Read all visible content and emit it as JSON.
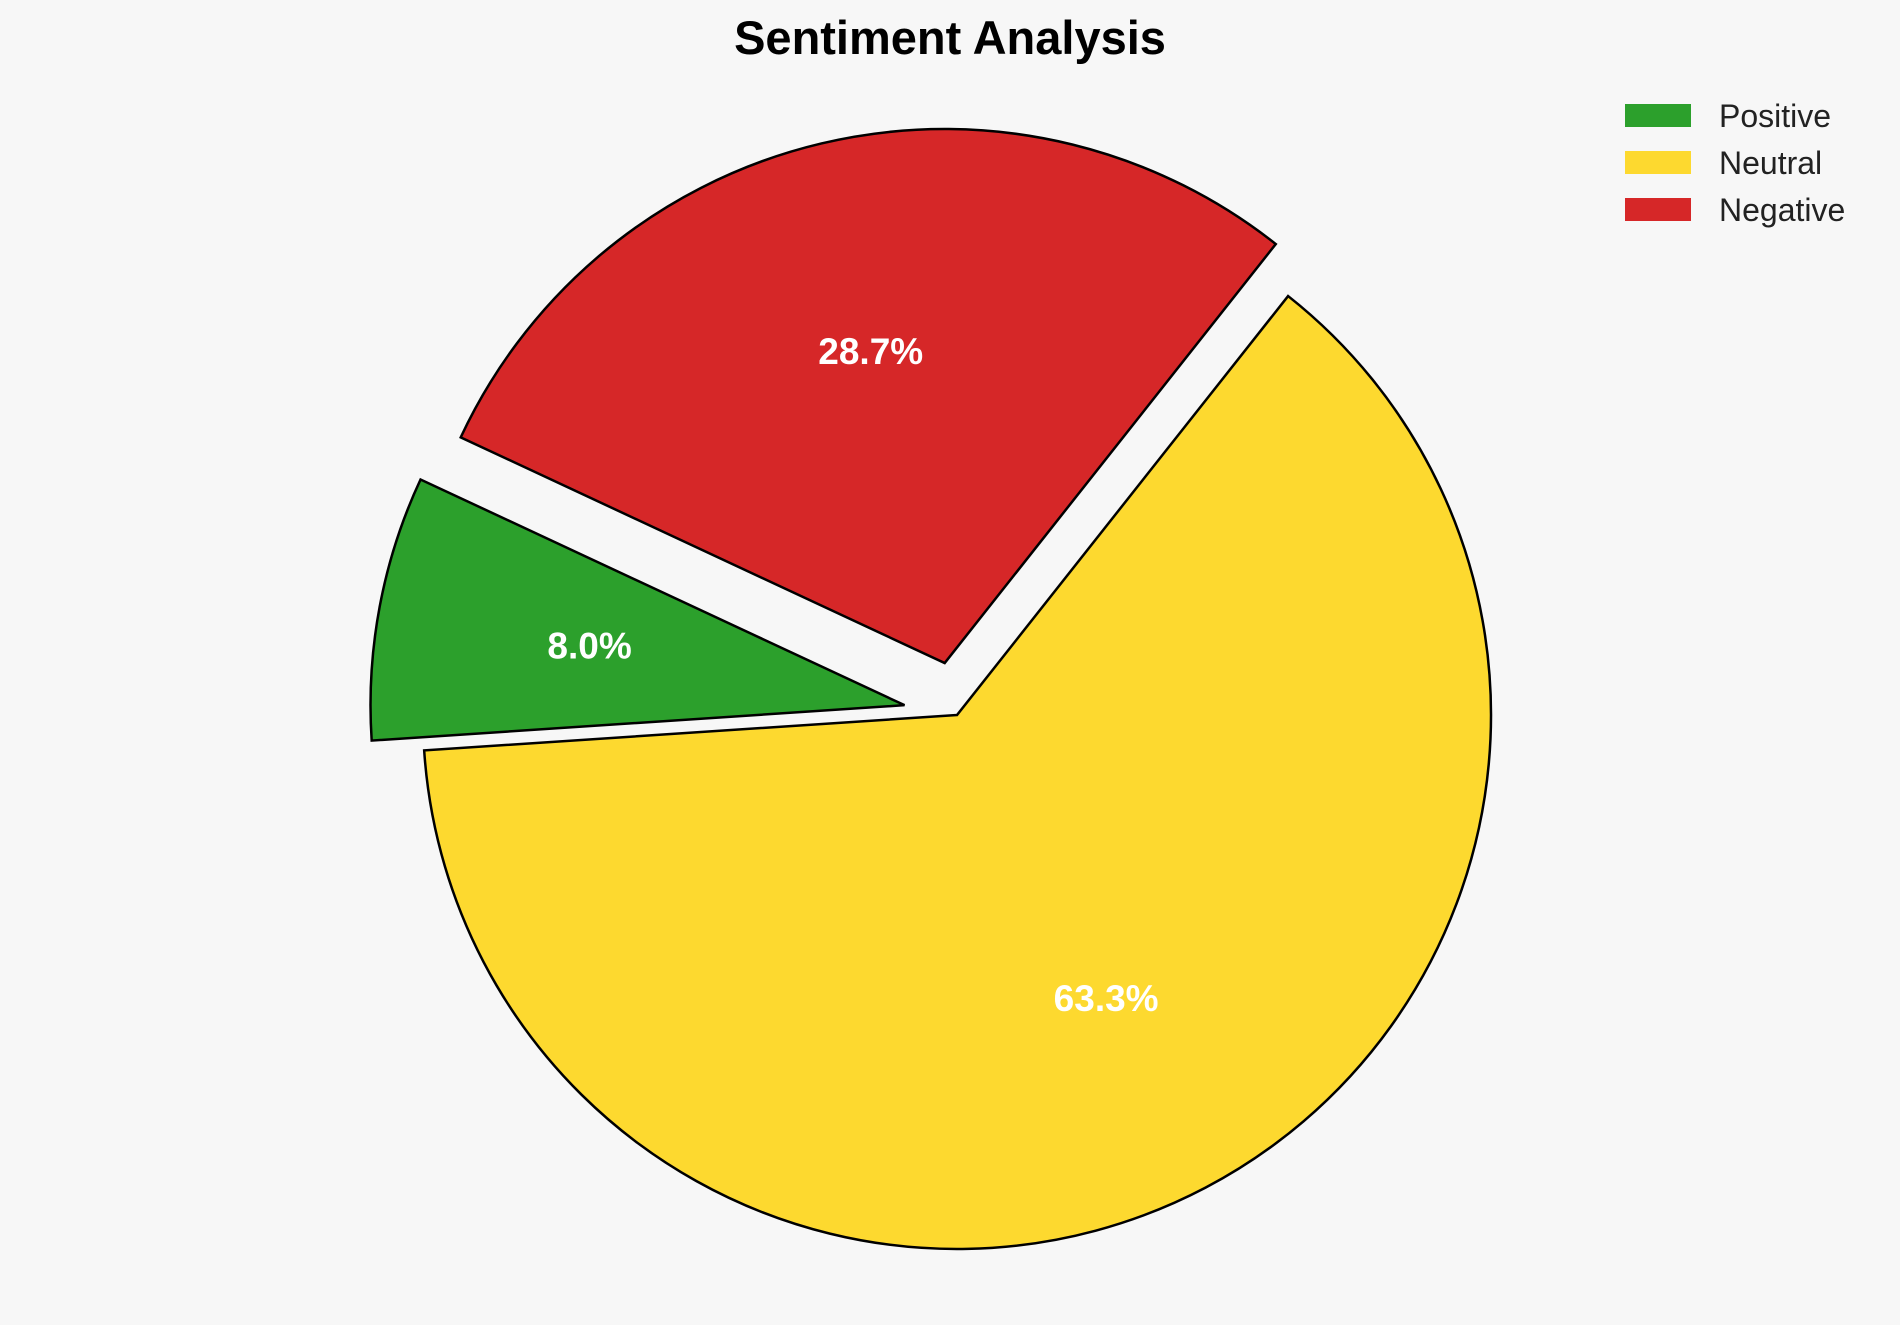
{
  "chart_data": {
    "type": "pie",
    "title": "Sentiment Analysis",
    "categories": [
      "Positive",
      "Neutral",
      "Negative"
    ],
    "values": [
      8.0,
      63.3,
      28.7
    ],
    "labels": [
      "8.0%",
      "63.3%",
      "28.7%"
    ],
    "colors": [
      "#2ca02c",
      "#fdd92f",
      "#d62728"
    ],
    "exploded": [
      true,
      false,
      true
    ],
    "legend_position": "top-right",
    "start_angle_deg": 155,
    "direction": "counterclockwise"
  }
}
